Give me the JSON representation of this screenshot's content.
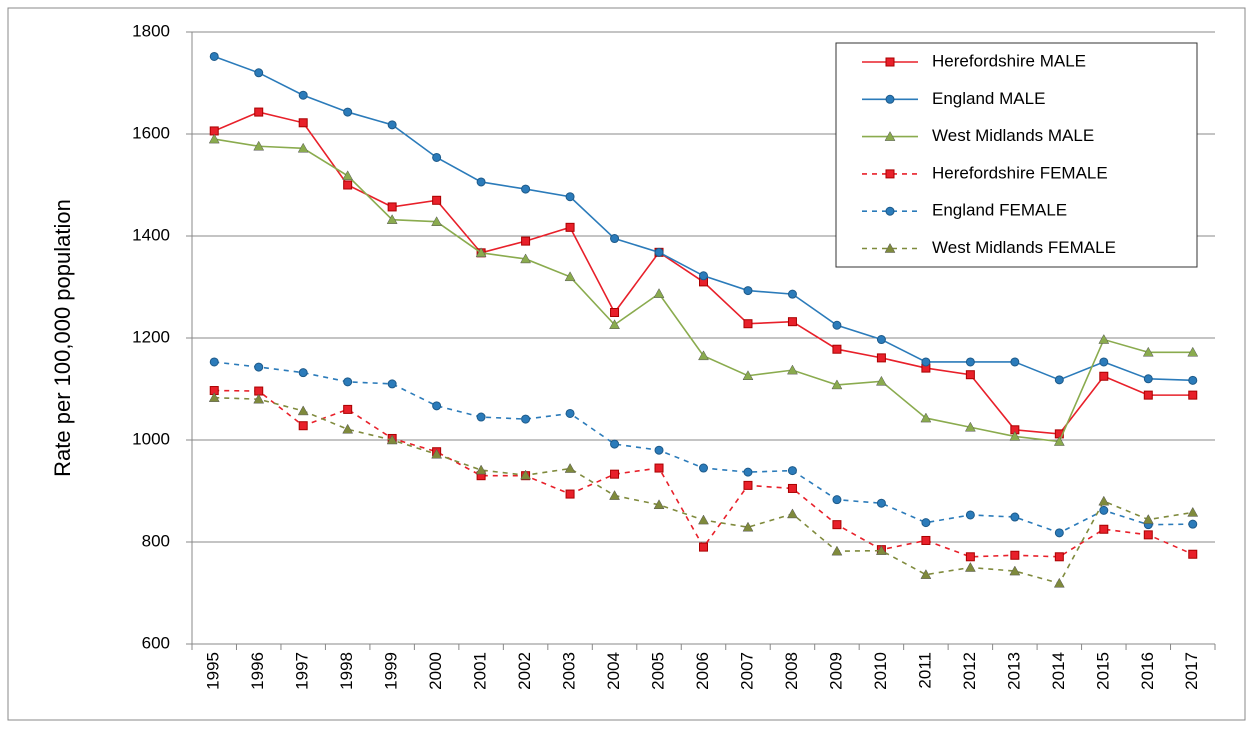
{
  "chart_data": {
    "type": "line",
    "y_label": "Rate per 100,000 population",
    "categories": [
      "1995",
      "1996",
      "1997",
      "1998",
      "1999",
      "2000",
      "2001",
      "2002",
      "2003",
      "2004",
      "2005",
      "2006",
      "2007",
      "2008",
      "2009",
      "2010",
      "2011",
      "2012",
      "2013",
      "2014",
      "2015",
      "2016",
      "2017"
    ],
    "series": [
      {
        "name": "Herefordshire MALE",
        "color": "#e8202a",
        "marker": "square",
        "dash": false,
        "values": [
          1606,
          1643,
          1622,
          1500,
          1457,
          1470,
          1367,
          1390,
          1417,
          1250,
          1368,
          1310,
          1228,
          1232,
          1178,
          1161,
          1141,
          1128,
          1020,
          1012,
          1125,
          1088,
          1088
        ]
      },
      {
        "name": "England MALE",
        "color": "#2b7bba",
        "marker": "circle",
        "dash": false,
        "values": [
          1752,
          1720,
          1676,
          1643,
          1618,
          1554,
          1506,
          1492,
          1477,
          1395,
          1368,
          1322,
          1293,
          1286,
          1225,
          1197,
          1153,
          1153,
          1153,
          1118,
          1153,
          1120,
          1117
        ]
      },
      {
        "name": "West Midlands MALE",
        "color": "#8aab4e",
        "marker": "triangle",
        "dash": false,
        "values": [
          1590,
          1576,
          1572,
          1518,
          1432,
          1428,
          1367,
          1355,
          1320,
          1226,
          1287,
          1165,
          1126,
          1137,
          1108,
          1115,
          1043,
          1025,
          1007,
          997,
          1197,
          1172,
          1172
        ]
      },
      {
        "name": "Herefordshire FEMALE",
        "color": "#e8202a",
        "marker": "square",
        "dash": true,
        "values": [
          1097,
          1096,
          1028,
          1060,
          1003,
          977,
          930,
          930,
          894,
          933,
          945,
          790,
          911,
          905,
          834,
          785,
          803,
          771,
          774,
          771,
          825,
          814,
          776
        ]
      },
      {
        "name": "England FEMALE",
        "color": "#2b7bba",
        "marker": "circle",
        "dash": true,
        "values": [
          1153,
          1143,
          1132,
          1114,
          1110,
          1067,
          1045,
          1041,
          1052,
          992,
          980,
          945,
          937,
          940,
          883,
          876,
          838,
          853,
          849,
          818,
          862,
          834,
          835
        ]
      },
      {
        "name": "West Midlands FEMALE",
        "color": "#7f8a3c",
        "marker": "triangle",
        "dash": true,
        "values": [
          1083,
          1080,
          1057,
          1021,
          1000,
          972,
          941,
          931,
          944,
          891,
          873,
          843,
          829,
          855,
          782,
          783,
          736,
          750,
          743,
          719,
          880,
          844,
          858
        ]
      }
    ],
    "ylim": [
      600,
      1800
    ],
    "yticks": [
      600,
      800,
      1000,
      1200,
      1400,
      1600,
      1800
    ],
    "grid": true,
    "legend": "top-right"
  }
}
